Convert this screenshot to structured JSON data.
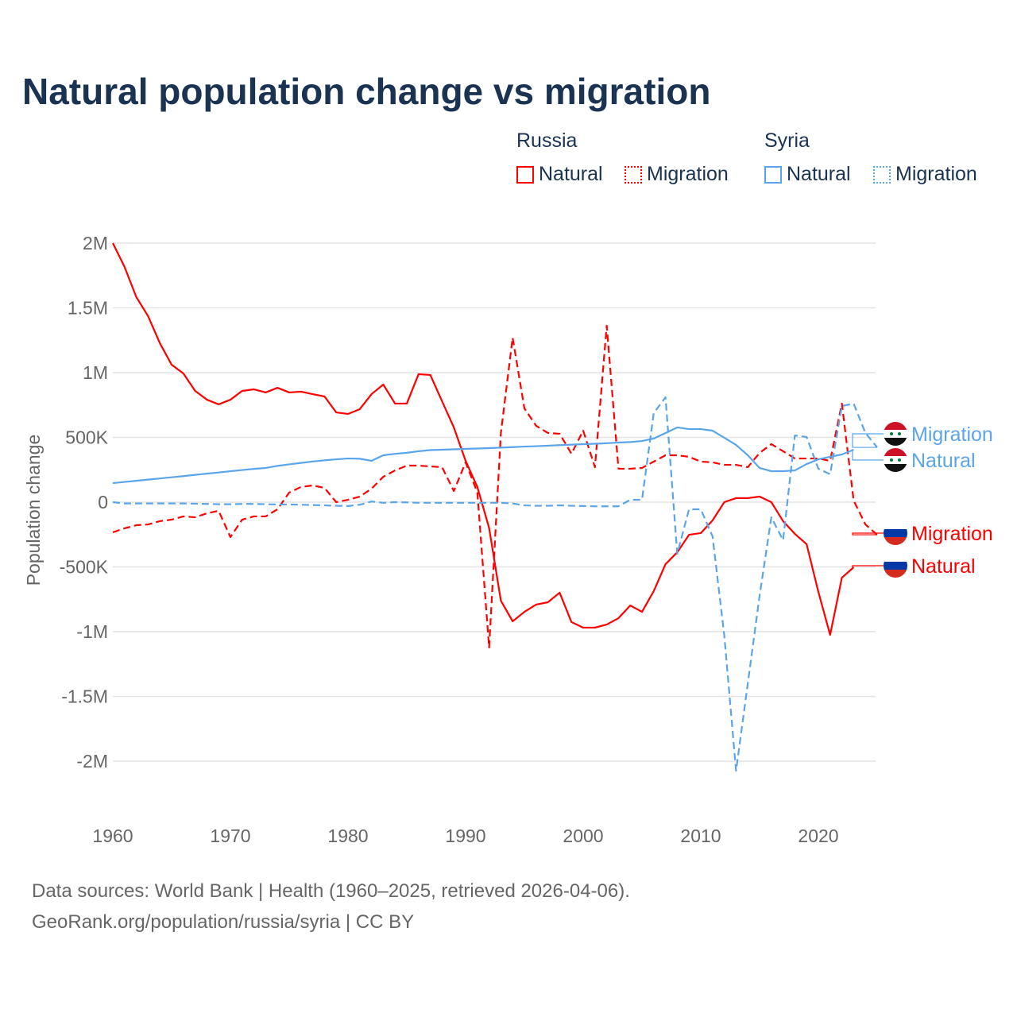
{
  "title": "Natural population change vs migration",
  "legend": {
    "groups": [
      {
        "name": "Russia",
        "items": [
          {
            "label": "Natural",
            "style": "solid",
            "color": "#ff0000"
          },
          {
            "label": "Migration",
            "style": "dotted",
            "color": "#ff0000"
          }
        ]
      },
      {
        "name": "Syria",
        "items": [
          {
            "label": "Natural",
            "style": "solid",
            "color": "#5aa5ea"
          },
          {
            "label": "Migration",
            "style": "dotted",
            "color": "#5aa5ea"
          }
        ]
      }
    ]
  },
  "source": {
    "line1": "Data sources: World Bank | Health (1960–2025, retrieved 2026-04-06).",
    "line2": "GeoRank.org/population/russia/syria | CC BY"
  },
  "chart_data": {
    "type": "line",
    "title": "Natural population change vs migration",
    "xlabel": "",
    "ylabel": "Population change",
    "xlim": [
      1960,
      2025
    ],
    "ylim": [
      -2000000,
      2000000
    ],
    "xticks": [
      1960,
      1970,
      1980,
      1990,
      2000,
      2010,
      2020
    ],
    "xtick_labels": [
      "1960",
      "1970",
      "1980",
      "1990",
      "2000",
      "2010",
      "2020"
    ],
    "yticks": [
      2000000,
      1500000,
      1000000,
      500000,
      0,
      -500000,
      -1000000,
      -1500000,
      -2000000
    ],
    "ytick_labels": [
      "2M",
      "1.5M",
      "1M",
      "500K",
      "0",
      "-500K",
      "-1M",
      "-1.5M",
      "-2M"
    ],
    "grid": true,
    "series": [
      {
        "name": "Russia Natural",
        "country": "Russia",
        "label": "Natural",
        "color": "#ff0000",
        "dash": false,
        "start": 1960,
        "values": [
          2000,
          1816,
          1583,
          1436,
          1227,
          1061,
          994,
          859,
          791,
          755,
          791,
          859,
          871,
          847,
          883,
          847,
          853,
          834,
          816,
          693,
          681,
          718,
          834,
          908,
          761,
          761,
          988,
          982,
          779,
          577,
          319,
          117,
          -200,
          -761,
          -920,
          -847,
          -791,
          -773,
          -699,
          -926,
          -969,
          -969,
          -945,
          -896,
          -798,
          -847,
          -687,
          -479,
          -387,
          -252,
          -239,
          -141,
          0,
          31,
          31,
          43,
          0,
          -147,
          -245,
          -325,
          -693,
          -1025,
          -583,
          -503
        ]
      },
      {
        "name": "Russia Migration",
        "country": "Russia",
        "label": "Migration",
        "color": "#ff0000",
        "dash": true,
        "start": 1960,
        "values": [
          -233,
          -202,
          -178,
          -172,
          -147,
          -135,
          -110,
          -117,
          -86,
          -67,
          -270,
          -135,
          -110,
          -110,
          -55,
          74,
          117,
          129,
          110,
          0,
          18,
          43,
          104,
          196,
          245,
          282,
          282,
          276,
          270,
          86,
          307,
          74,
          -1123,
          534,
          1270,
          724,
          589,
          534,
          528,
          374,
          552,
          270,
          1362,
          258,
          258,
          264,
          313,
          362,
          362,
          350,
          313,
          307,
          288,
          288,
          270,
          380,
          448,
          393,
          337,
          337,
          337,
          319,
          761,
          12,
          -172,
          -252
        ]
      },
      {
        "name": "Syria Natural",
        "country": "Syria",
        "label": "Natural",
        "color": "#5aa5ea",
        "dash": false,
        "start": 1960,
        "values": [
          147,
          156,
          165,
          174,
          183,
          192,
          201,
          211,
          220,
          229,
          239,
          248,
          257,
          264,
          280,
          292,
          303,
          314,
          323,
          331,
          337,
          335,
          319,
          362,
          373,
          381,
          393,
          402,
          405,
          408,
          411,
          414,
          417,
          421,
          425,
          429,
          432,
          436,
          440,
          444,
          448,
          451,
          455,
          460,
          464,
          472,
          491,
          534,
          577,
          564,
          564,
          552,
          497,
          442,
          362,
          264,
          239,
          239,
          245,
          294,
          331,
          350,
          368,
          405
        ]
      },
      {
        "name": "Syria Migration",
        "country": "Syria",
        "label": "Migration",
        "color": "#5aa5ea",
        "dash": true,
        "start": 1960,
        "values": [
          0,
          -10,
          -10,
          -10,
          -10,
          -10,
          -10,
          -12,
          -14,
          -16,
          -16,
          -14,
          -14,
          -16,
          -18,
          -18,
          -20,
          -22,
          -25,
          -28,
          -30,
          -20,
          5,
          -5,
          0,
          -2,
          -5,
          -5,
          -5,
          -5,
          -5,
          -5,
          -5,
          -5,
          -10,
          -25,
          -28,
          -28,
          -25,
          -28,
          -30,
          -32,
          -32,
          -32,
          18,
          18,
          687,
          810,
          -399,
          -55,
          -55,
          -264,
          -1030,
          -2074,
          -1399,
          -724,
          -117,
          -294,
          515,
          503,
          258,
          215,
          742,
          761,
          534,
          423
        ]
      }
    ],
    "value_unit": "thousands",
    "end_labels": [
      {
        "text": "Migration",
        "series": "Syria Migration"
      },
      {
        "text": "Natural",
        "series": "Syria Natural"
      },
      {
        "text": "Migration",
        "series": "Russia Migration"
      },
      {
        "text": "Natural",
        "series": "Russia Natural"
      }
    ]
  }
}
